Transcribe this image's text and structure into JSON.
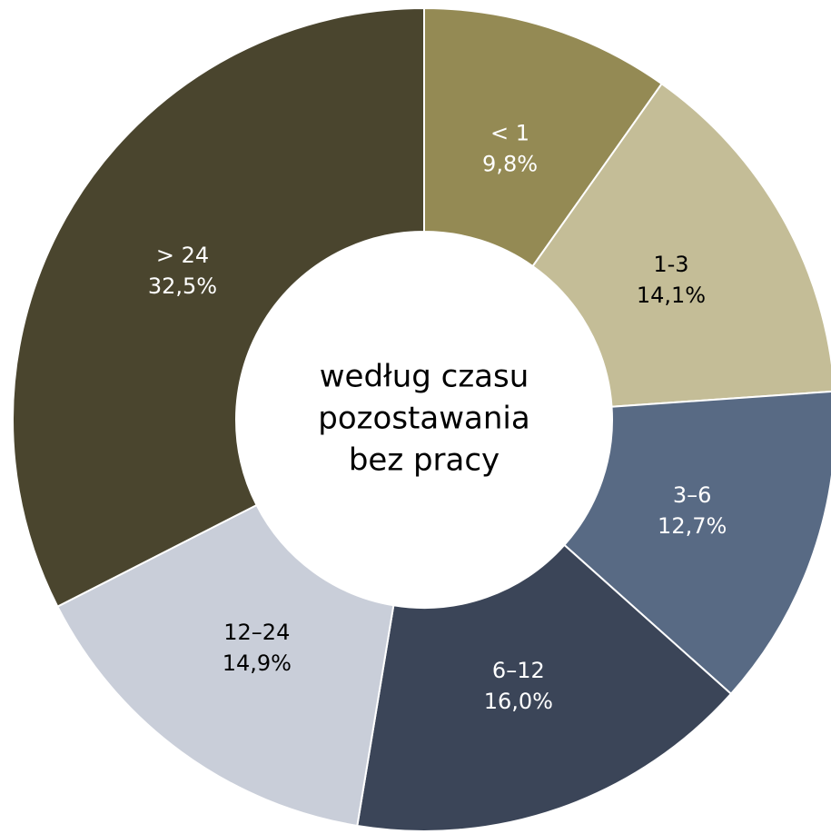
{
  "chart_data": {
    "type": "donut",
    "center_text": [
      "według czasu",
      "pozostawania",
      "bez pracy"
    ],
    "categories": [
      "< 1",
      "1-3",
      "3–6",
      "6–12",
      "12–24",
      "> 24"
    ],
    "values": [
      9.8,
      14.1,
      12.7,
      16.0,
      14.9,
      32.5
    ],
    "value_labels": [
      "9,8%",
      "14,1%",
      "12,7%",
      "16,0%",
      "14,9%",
      "32,5%"
    ],
    "colors": [
      "#948a54",
      "#c4bd97",
      "#586a84",
      "#3b4558",
      "#c9ced9",
      "#4a452e"
    ]
  }
}
